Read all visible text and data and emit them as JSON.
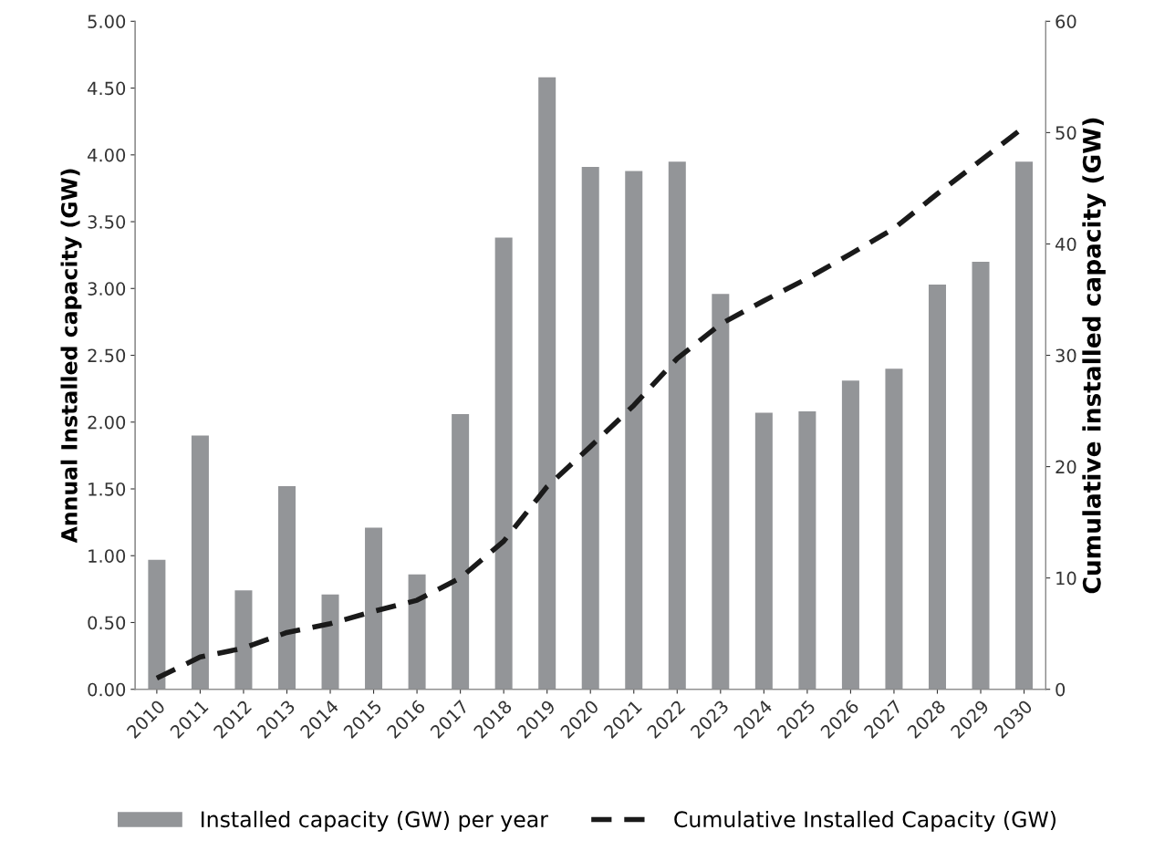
{
  "chart_data": {
    "type": "bar",
    "categories": [
      "2010",
      "2011",
      "2012",
      "2013",
      "2014",
      "2015",
      "2016",
      "2017",
      "2018",
      "2019",
      "2020",
      "2021",
      "2022",
      "2023",
      "2024",
      "2025",
      "2026",
      "2027",
      "2028",
      "2029",
      "2030"
    ],
    "ylabel": "Annual Installed capacity (GW)",
    "y2label": "Cumulative installed capacity (GW)",
    "series": [
      {
        "name": "Installed capacity (GW) per year",
        "color": "#939598",
        "values": [
          0.97,
          1.9,
          0.74,
          1.52,
          0.71,
          1.21,
          0.86,
          2.06,
          3.38,
          4.58,
          3.91,
          3.88,
          3.95,
          2.96,
          2.07,
          2.08,
          2.31,
          2.4,
          3.03,
          3.2,
          3.95
        ]
      },
      {
        "name": "Cumulative Installed Capacity (GW)",
        "type": "line",
        "axis": "y2",
        "color": "#1a1a1a",
        "line_style": "dashed",
        "values": [
          1.0,
          2.9,
          3.7,
          5.1,
          5.9,
          7.0,
          8.0,
          10.0,
          13.3,
          18.2,
          21.8,
          25.5,
          29.7,
          32.8,
          34.9,
          36.9,
          39.1,
          41.4,
          44.5,
          47.5,
          50.5
        ]
      }
    ],
    "ylim": [
      0,
      5
    ],
    "yticks": [
      {
        "value": 0,
        "label": "0.00"
      },
      {
        "value": 0.5,
        "label": "0.50"
      },
      {
        "value": 1,
        "label": "1.00"
      },
      {
        "value": 1.5,
        "label": "1.50"
      },
      {
        "value": 2,
        "label": "2.00"
      },
      {
        "value": 2.5,
        "label": "2.50"
      },
      {
        "value": 3,
        "label": "3.00"
      },
      {
        "value": 3.5,
        "label": "3.50"
      },
      {
        "value": 4,
        "label": "4.00"
      },
      {
        "value": 4.5,
        "label": "4.50"
      },
      {
        "value": 5,
        "label": "5.00"
      }
    ],
    "y2lim": [
      0,
      60
    ],
    "y2ticks": [
      0,
      10,
      20,
      30,
      40,
      50,
      60
    ],
    "grid": false,
    "legend": "bottom"
  }
}
